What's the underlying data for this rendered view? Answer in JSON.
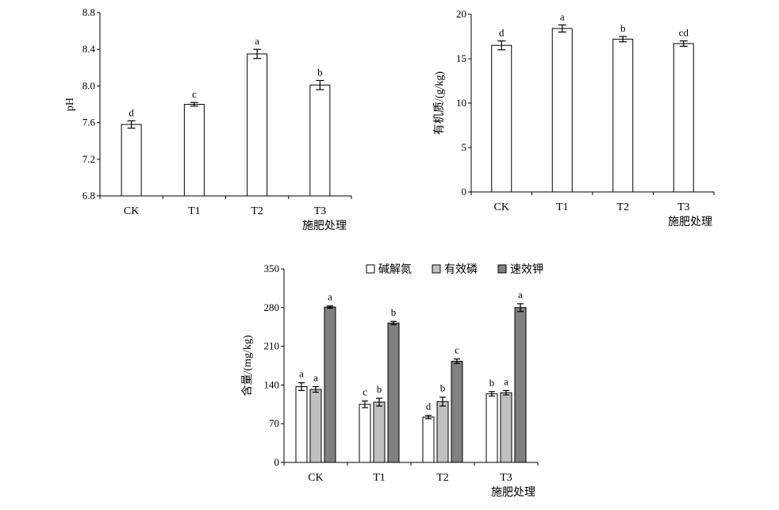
{
  "chart_data": [
    {
      "type": "bar",
      "categories": [
        "CK",
        "T1",
        "T2",
        "T3"
      ],
      "values": [
        7.58,
        7.8,
        8.35,
        8.01
      ],
      "errors": [
        0.04,
        0.02,
        0.05,
        0.05
      ],
      "labels": [
        "d",
        "c",
        "a",
        "b"
      ],
      "ylabel": "pH",
      "xlabel": "施肥处理",
      "ylim": [
        6.8,
        8.8
      ],
      "yticks": [
        "6.8",
        "7.2",
        "7.6",
        "8.0",
        "8.4",
        "8.8"
      ],
      "bar_color": "#ffffff"
    },
    {
      "type": "bar",
      "categories": [
        "CK",
        "T1",
        "T2",
        "T3"
      ],
      "values": [
        16.5,
        18.4,
        17.2,
        16.7
      ],
      "errors": [
        0.5,
        0.4,
        0.3,
        0.3
      ],
      "labels": [
        "d",
        "a",
        "b",
        "cd"
      ],
      "ylabel": "有机质/(g/kg)",
      "xlabel": "施肥处理",
      "ylim": [
        0,
        20
      ],
      "yticks": [
        "0",
        "5",
        "10",
        "15",
        "20"
      ],
      "bar_color": "#ffffff"
    },
    {
      "type": "bar",
      "categories": [
        "CK",
        "T1",
        "T2",
        "T3"
      ],
      "series": [
        {
          "name": "碱解氮",
          "color": "#ffffff",
          "values": [
            137,
            105,
            82,
            124
          ],
          "errors": [
            7,
            6,
            3,
            4
          ],
          "labels": [
            "a",
            "c",
            "d",
            "b"
          ]
        },
        {
          "name": "有效磷",
          "color": "#c0c0c0",
          "values": [
            132,
            109,
            110,
            126
          ],
          "errors": [
            5,
            7,
            8,
            4
          ],
          "labels": [
            "a",
            "b",
            "b",
            "a"
          ]
        },
        {
          "name": "速效钾",
          "color": "#808080",
          "values": [
            281,
            252,
            183,
            280
          ],
          "errors": [
            2,
            3,
            4,
            7
          ],
          "labels": [
            "a",
            "b",
            "c",
            "a"
          ]
        }
      ],
      "ylabel": "含量/(mg/kg)",
      "xlabel": "施肥处理",
      "ylim": [
        0,
        350
      ],
      "yticks": [
        "0",
        "70",
        "140",
        "210",
        "280",
        "350"
      ],
      "legend": "top"
    }
  ]
}
